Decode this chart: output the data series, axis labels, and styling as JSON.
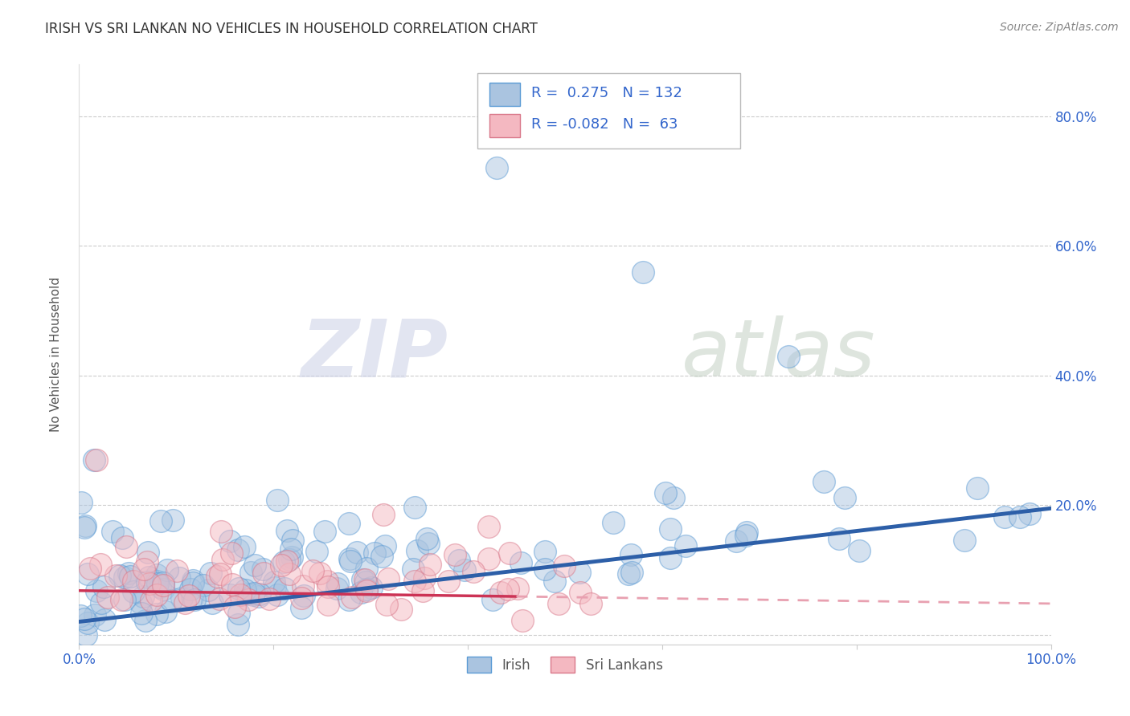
{
  "title": "IRISH VS SRI LANKAN NO VEHICLES IN HOUSEHOLD CORRELATION CHART",
  "source": "Source: ZipAtlas.com",
  "ylabel": "No Vehicles in Household",
  "xlim": [
    0.0,
    1.0
  ],
  "ylim": [
    -0.015,
    0.88
  ],
  "xtick_vals": [
    0.0,
    0.2,
    0.4,
    0.6,
    0.8,
    1.0
  ],
  "xtick_labels": [
    "0.0%",
    "",
    "",
    "",
    "",
    "100.0%"
  ],
  "ytick_vals": [
    0.0,
    0.2,
    0.4,
    0.6,
    0.8
  ],
  "ytick_right_labels": [
    "",
    "20.0%",
    "40.0%",
    "60.0%",
    "80.0%"
  ],
  "irish_color": "#aac4e0",
  "irish_edge": "#5b9bd5",
  "srilankan_color": "#f4b8c1",
  "srilankan_edge": "#d9788a",
  "trend_irish_color": "#2d5fa8",
  "trend_srilankan_solid_color": "#cc3355",
  "trend_srilankan_dash_color": "#e8a0b0",
  "watermark": "ZIPatlas",
  "watermark_zip_color": "#d8d8e8",
  "watermark_atlas_color": "#d0d8d0",
  "R_irish": 0.275,
  "N_irish": 132,
  "R_srilankan": -0.082,
  "N_srilankan": 63,
  "background": "#ffffff",
  "grid_color": "#cccccc",
  "legend_box_color": "#aaaaaa",
  "irish_legend_color": "#aac4e0",
  "irish_legend_edge": "#5b9bd5",
  "sri_legend_color": "#f4b8c1",
  "sri_legend_edge": "#d9788a",
  "legend_text_color": "#3366cc",
  "label_color": "#3366cc",
  "title_color": "#333333",
  "ylabel_color": "#555555",
  "source_color": "#888888"
}
